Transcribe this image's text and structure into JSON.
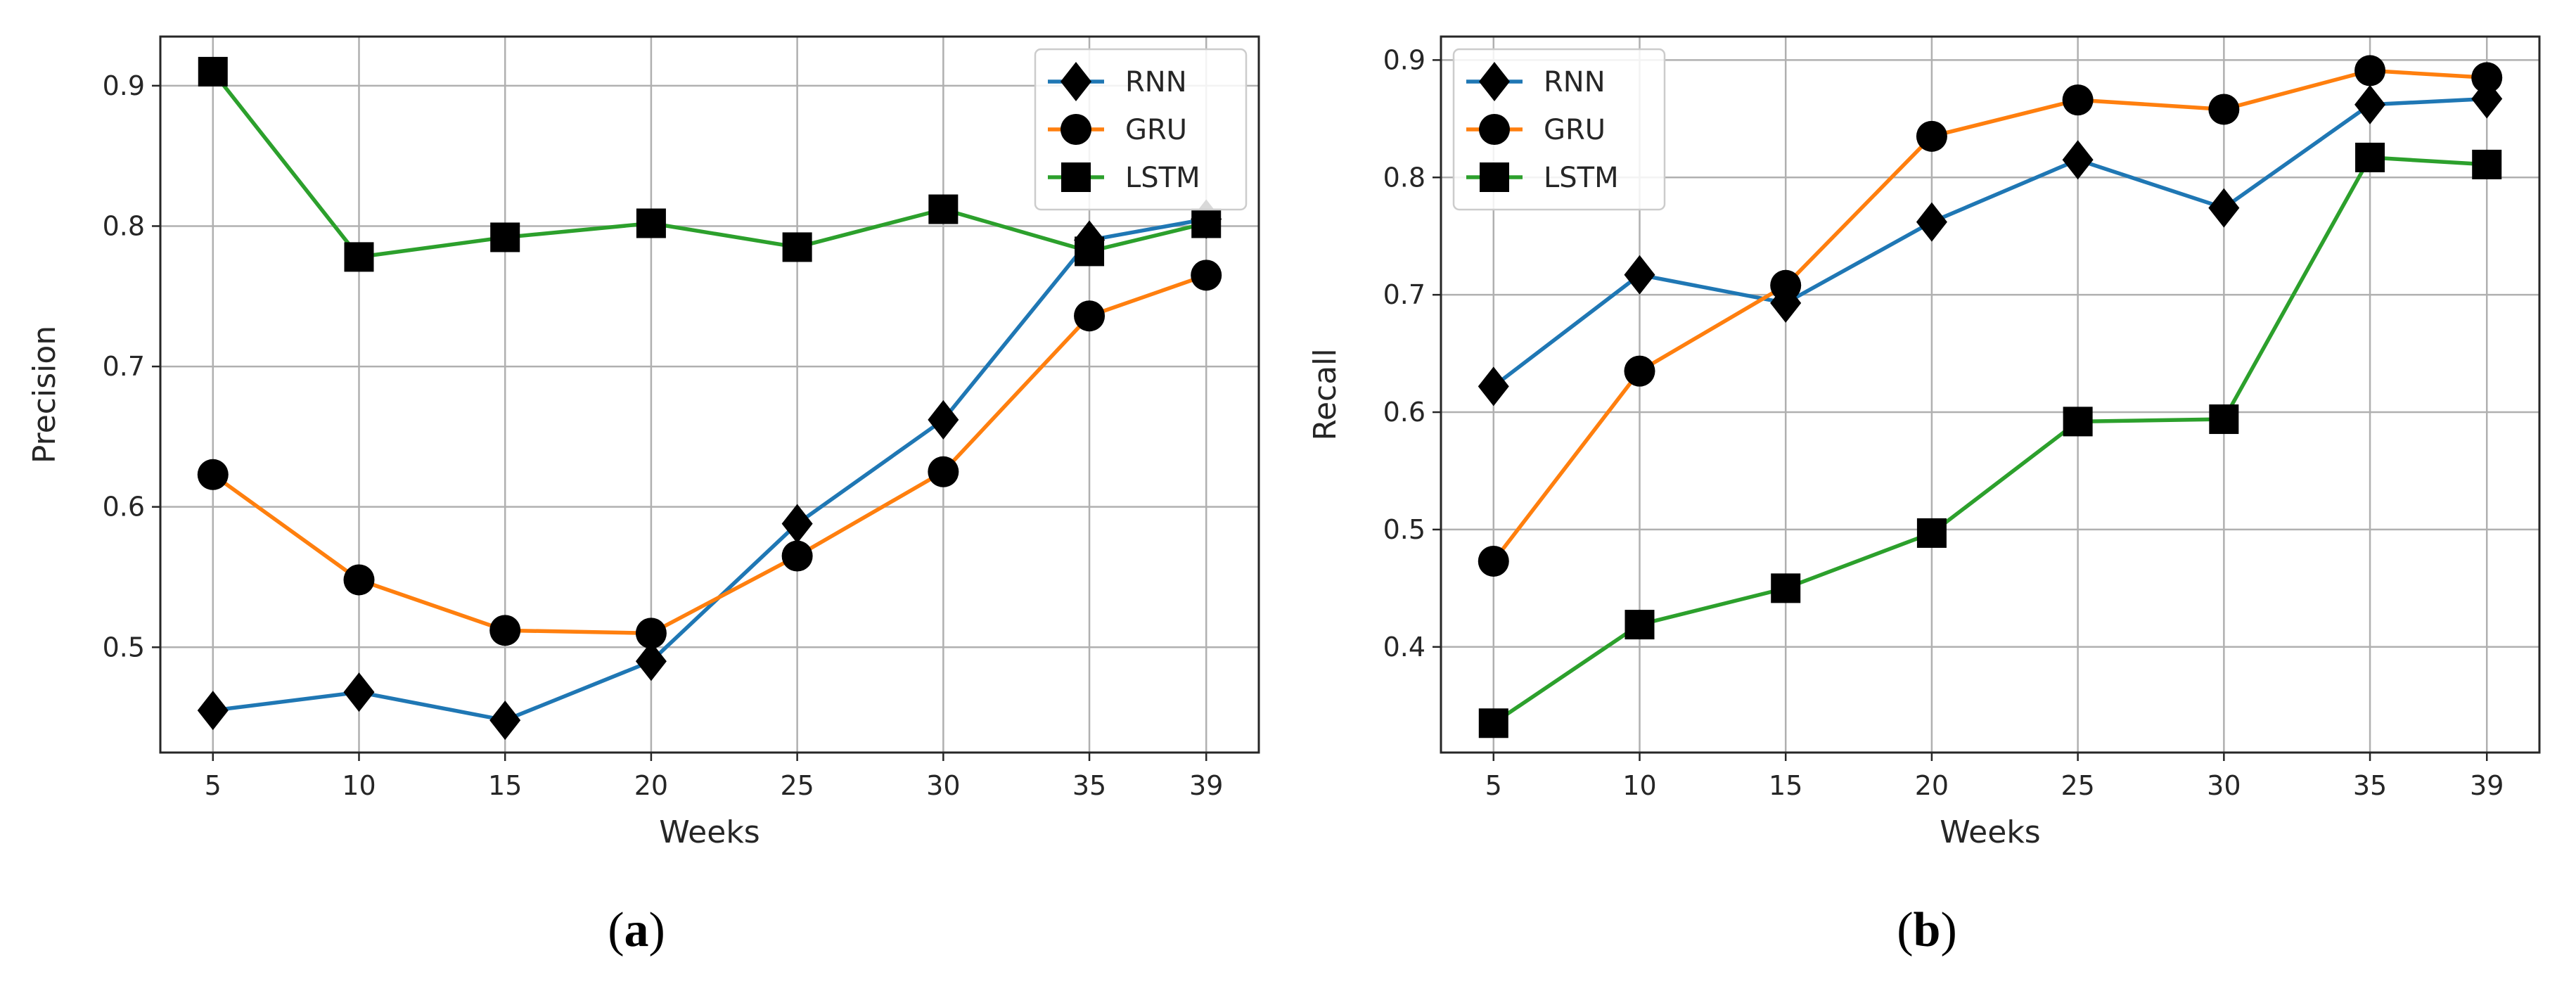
{
  "figure": {
    "panels": [
      {
        "caption_open": "(",
        "caption_letter": "a",
        "caption_close": ")"
      },
      {
        "caption_open": "(",
        "caption_letter": "b",
        "caption_close": ")"
      }
    ]
  },
  "chart_data": [
    {
      "type": "line",
      "title": "",
      "xlabel": "Weeks",
      "ylabel": "Precision",
      "x": [
        5,
        10,
        15,
        20,
        25,
        30,
        35,
        39
      ],
      "x_ticks": [
        "5",
        "10",
        "15",
        "20",
        "25",
        "30",
        "35",
        "39"
      ],
      "xlim": [
        3.2,
        40.8
      ],
      "ylim": [
        0.425,
        0.935
      ],
      "y_ticks": [
        "0.5",
        "0.6",
        "0.7",
        "0.8",
        "0.9"
      ],
      "y_tick_values": [
        0.5,
        0.6,
        0.7,
        0.8,
        0.9
      ],
      "grid": true,
      "legend_position": "top-right",
      "series": [
        {
          "name": "RNN",
          "color": "#1f77b4",
          "marker": "diamond",
          "values": [
            0.455,
            0.468,
            0.448,
            0.49,
            0.588,
            0.662,
            0.79,
            0.805
          ]
        },
        {
          "name": "GRU",
          "color": "#ff7f0e",
          "marker": "circle",
          "values": [
            0.623,
            0.548,
            0.512,
            0.51,
            0.565,
            0.625,
            0.736,
            0.765
          ]
        },
        {
          "name": "LSTM",
          "color": "#2ca02c",
          "marker": "square",
          "values": [
            0.91,
            0.778,
            0.792,
            0.802,
            0.785,
            0.812,
            0.782,
            0.802
          ]
        }
      ]
    },
    {
      "type": "line",
      "title": "",
      "xlabel": "Weeks",
      "ylabel": "Recall",
      "x": [
        5,
        10,
        15,
        20,
        25,
        30,
        35,
        39
      ],
      "x_ticks": [
        "5",
        "10",
        "15",
        "20",
        "25",
        "30",
        "35",
        "39"
      ],
      "xlim": [
        3.2,
        40.8
      ],
      "ylim": [
        0.31,
        0.92
      ],
      "y_ticks": [
        "0.4",
        "0.5",
        "0.6",
        "0.7",
        "0.8",
        "0.9"
      ],
      "y_tick_values": [
        0.4,
        0.5,
        0.6,
        0.7,
        0.8,
        0.9
      ],
      "grid": true,
      "legend_position": "top-left",
      "series": [
        {
          "name": "RNN",
          "color": "#1f77b4",
          "marker": "diamond",
          "values": [
            0.622,
            0.717,
            0.693,
            0.762,
            0.815,
            0.774,
            0.862,
            0.867
          ]
        },
        {
          "name": "GRU",
          "color": "#ff7f0e",
          "marker": "circle",
          "values": [
            0.473,
            0.635,
            0.708,
            0.835,
            0.866,
            0.858,
            0.891,
            0.885
          ]
        },
        {
          "name": "LSTM",
          "color": "#2ca02c",
          "marker": "square",
          "values": [
            0.335,
            0.419,
            0.45,
            0.497,
            0.592,
            0.594,
            0.817,
            0.811
          ]
        }
      ]
    }
  ]
}
